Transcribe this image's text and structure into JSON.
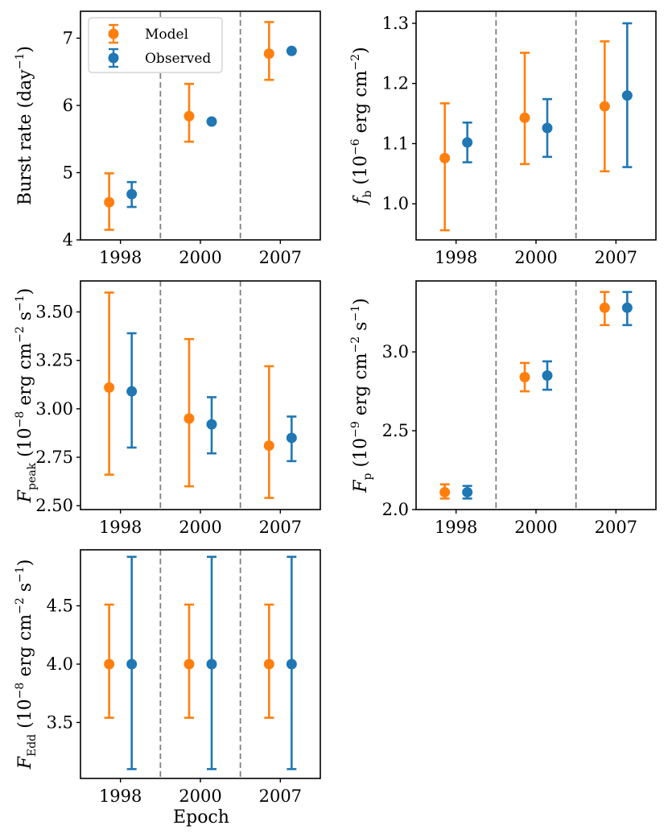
{
  "colors": {
    "model": "#ff7f0e",
    "observed": "#1f77b4",
    "divider": "#808080",
    "axis": "#000000"
  },
  "legend": {
    "model_label": "Model",
    "observed_label": "Observed"
  },
  "xlabel_bottom": "Epoch",
  "chart_data": [
    {
      "type": "scatter",
      "panel": "burst-rate",
      "categories": [
        "1998",
        "2000",
        "2007"
      ],
      "ylabel": "Burst rate (day⁻¹)",
      "ylim": [
        4.0,
        7.4
      ],
      "yticks": [
        "4",
        "5",
        "6",
        "7"
      ],
      "ytick_values": [
        4,
        5,
        6,
        7
      ],
      "legend_position": "top-left",
      "series": [
        {
          "name": "Model",
          "values": [
            4.56,
            5.84,
            6.77
          ],
          "err_low": [
            4.15,
            5.46,
            6.38
          ],
          "err_high": [
            4.99,
            6.32,
            7.24
          ]
        },
        {
          "name": "Observed",
          "values": [
            4.68,
            5.76,
            6.81
          ],
          "err_low": [
            4.49,
            null,
            null
          ],
          "err_high": [
            4.86,
            null,
            null
          ]
        }
      ]
    },
    {
      "type": "scatter",
      "panel": "fluence",
      "categories": [
        "1998",
        "2000",
        "2007"
      ],
      "ylabel": "f_b (10⁻⁶ erg cm⁻²)",
      "ylim": [
        0.94,
        1.32
      ],
      "yticks": [
        "1.0",
        "1.1",
        "1.2",
        "1.3"
      ],
      "ytick_values": [
        1.0,
        1.1,
        1.2,
        1.3
      ],
      "series": [
        {
          "name": "Model",
          "values": [
            1.076,
            1.143,
            1.162
          ],
          "err_low": [
            0.956,
            1.066,
            1.054
          ],
          "err_high": [
            1.167,
            1.251,
            1.27
          ]
        },
        {
          "name": "Observed",
          "values": [
            1.102,
            1.126,
            1.18
          ],
          "err_low": [
            1.069,
            1.078,
            1.061
          ],
          "err_high": [
            1.135,
            1.174,
            1.3
          ]
        }
      ]
    },
    {
      "type": "scatter",
      "panel": "peak-flux",
      "categories": [
        "1998",
        "2000",
        "2007"
      ],
      "ylabel": "F_peak (10⁻⁸ erg cm⁻² s⁻¹)",
      "ylim": [
        2.48,
        3.66
      ],
      "yticks": [
        "2.50",
        "2.75",
        "3.00",
        "3.25",
        "3.50"
      ],
      "ytick_values": [
        2.5,
        2.75,
        3.0,
        3.25,
        3.5
      ],
      "series": [
        {
          "name": "Model",
          "values": [
            3.11,
            2.95,
            2.81
          ],
          "err_low": [
            2.66,
            2.6,
            2.54
          ],
          "err_high": [
            3.6,
            3.36,
            3.22
          ]
        },
        {
          "name": "Observed",
          "values": [
            3.09,
            2.92,
            2.85
          ],
          "err_low": [
            2.8,
            2.77,
            2.73
          ],
          "err_high": [
            3.39,
            3.06,
            2.96
          ]
        }
      ]
    },
    {
      "type": "scatter",
      "panel": "persistent-flux",
      "categories": [
        "1998",
        "2000",
        "2007"
      ],
      "ylabel": "F_p (10⁻⁹ erg cm⁻² s⁻¹)",
      "ylim": [
        2.0,
        3.45
      ],
      "yticks": [
        "2.0",
        "2.5",
        "3.0"
      ],
      "ytick_values": [
        2.0,
        2.5,
        3.0
      ],
      "series": [
        {
          "name": "Model",
          "values": [
            2.11,
            2.84,
            3.28
          ],
          "err_low": [
            2.07,
            2.75,
            3.17
          ],
          "err_high": [
            2.16,
            2.93,
            3.38
          ]
        },
        {
          "name": "Observed",
          "values": [
            2.11,
            2.85,
            3.28
          ],
          "err_low": [
            2.07,
            2.76,
            3.17
          ],
          "err_high": [
            2.15,
            2.94,
            3.38
          ]
        }
      ]
    },
    {
      "type": "scatter",
      "panel": "eddington-flux",
      "categories": [
        "1998",
        "2000",
        "2007"
      ],
      "ylabel": "F_Edd (10⁻⁸ erg cm⁻² s⁻¹)",
      "xlabel": "Epoch",
      "ylim": [
        3.02,
        4.98
      ],
      "yticks": [
        "3.5",
        "4.0",
        "4.5"
      ],
      "ytick_values": [
        3.5,
        4.0,
        4.5
      ],
      "series": [
        {
          "name": "Model",
          "values": [
            4.0,
            4.0,
            4.0
          ],
          "err_low": [
            3.54,
            3.54,
            3.54
          ],
          "err_high": [
            4.51,
            4.51,
            4.51
          ]
        },
        {
          "name": "Observed",
          "values": [
            4.0,
            4.0,
            4.0
          ],
          "err_low": [
            3.1,
            3.1,
            3.1
          ],
          "err_high": [
            4.92,
            4.92,
            4.92
          ]
        }
      ]
    }
  ]
}
